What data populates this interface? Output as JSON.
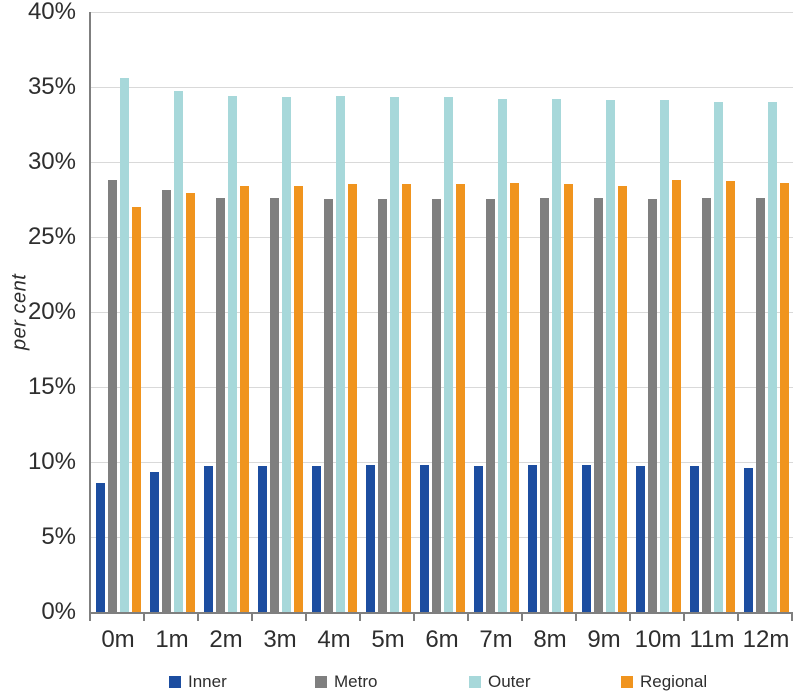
{
  "chart_data": {
    "type": "bar",
    "title": "",
    "xlabel": "",
    "ylabel": "per cent",
    "ylim": [
      0,
      40
    ],
    "ytick_step": 5,
    "ytick_suffix": "%",
    "grid": true,
    "legend_position": "bottom",
    "categories": [
      "0m",
      "1m",
      "2m",
      "3m",
      "4m",
      "5m",
      "6m",
      "7m",
      "8m",
      "9m",
      "10m",
      "11m",
      "12m"
    ],
    "series": [
      {
        "name": "Inner",
        "color": "#1c4da0",
        "values": [
          8.6,
          9.3,
          9.7,
          9.7,
          9.7,
          9.8,
          9.8,
          9.7,
          9.8,
          9.8,
          9.7,
          9.7,
          9.6
        ]
      },
      {
        "name": "Metro",
        "color": "#7f7f7f",
        "values": [
          28.8,
          28.1,
          27.6,
          27.6,
          27.5,
          27.5,
          27.5,
          27.5,
          27.6,
          27.6,
          27.5,
          27.6,
          27.6
        ]
      },
      {
        "name": "Outer",
        "color": "#a7d8da",
        "values": [
          35.6,
          34.7,
          34.4,
          34.3,
          34.4,
          34.3,
          34.3,
          34.2,
          34.2,
          34.1,
          34.1,
          34.0,
          34.0
        ]
      },
      {
        "name": "Regional",
        "color": "#f0941e",
        "values": [
          27.0,
          27.9,
          28.4,
          28.4,
          28.5,
          28.5,
          28.5,
          28.6,
          28.5,
          28.4,
          28.8,
          28.7,
          28.6
        ]
      }
    ]
  },
  "style": {
    "text_color": "#2e2e2e",
    "axis_color": "#7f7f7f",
    "grid_color": "#d9d9d9",
    "background": "#ffffff"
  }
}
